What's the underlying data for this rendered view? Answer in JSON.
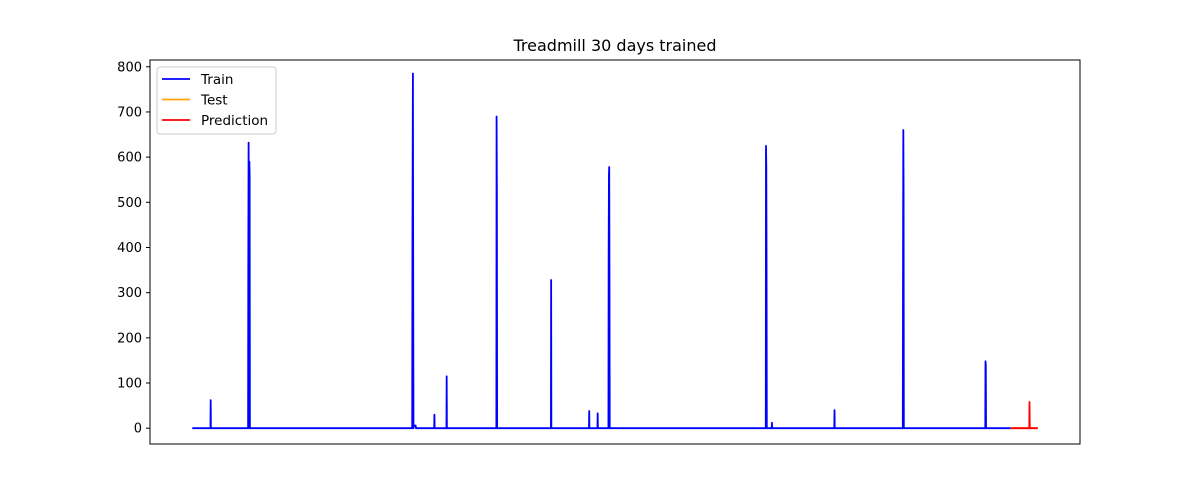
{
  "chart_data": {
    "type": "line",
    "title": "Treadmill 30 days trained",
    "xlabel": "",
    "ylabel": "",
    "ylim": [
      -35,
      815
    ],
    "y_ticks": [
      0,
      100,
      200,
      300,
      400,
      500,
      600,
      700,
      800
    ],
    "x_ticks_shown": false,
    "grid": false,
    "legend_position": "top-left",
    "series": [
      {
        "name": "Train",
        "color": "#0000ff",
        "points": [
          [
            0,
            0
          ],
          [
            43,
            0
          ],
          [
            43.5,
            62
          ],
          [
            44,
            0
          ],
          [
            132,
            0
          ],
          [
            132.5,
            365
          ],
          [
            133.2,
            632
          ],
          [
            133.8,
            310
          ],
          [
            134.2,
            0
          ],
          [
            135,
            590
          ],
          [
            135.6,
            560
          ],
          [
            136.2,
            0
          ],
          [
            520,
            0
          ],
          [
            520.5,
            375
          ],
          [
            521,
            545
          ],
          [
            521.7,
            785
          ],
          [
            522.4,
            300
          ],
          [
            523,
            0
          ],
          [
            524,
            6
          ],
          [
            528,
            6
          ],
          [
            529,
            0
          ],
          [
            572,
            0
          ],
          [
            572.5,
            30
          ],
          [
            573,
            0
          ],
          [
            601,
            0
          ],
          [
            601.5,
            115
          ],
          [
            602,
            0
          ],
          [
            719,
            0
          ],
          [
            719.5,
            690
          ],
          [
            720.2,
            520
          ],
          [
            720.8,
            0
          ],
          [
            848,
            0
          ],
          [
            848.5,
            328
          ],
          [
            849,
            0
          ],
          [
            938,
            0
          ],
          [
            938.5,
            38
          ],
          [
            939,
            0
          ],
          [
            958,
            0
          ],
          [
            958.5,
            33
          ],
          [
            959,
            0
          ],
          [
            984,
            0
          ],
          [
            984.5,
            390
          ],
          [
            985.2,
            560
          ],
          [
            985.8,
            578
          ],
          [
            986.4,
            360
          ],
          [
            987,
            0
          ],
          [
            1356,
            0
          ],
          [
            1356.5,
            625
          ],
          [
            1357.2,
            580
          ],
          [
            1357.8,
            380
          ],
          [
            1358.4,
            0
          ],
          [
            1370,
            0
          ],
          [
            1370.5,
            12
          ],
          [
            1371,
            0
          ],
          [
            1518,
            0
          ],
          [
            1518.5,
            40
          ],
          [
            1519,
            0
          ],
          [
            1680,
            0
          ],
          [
            1680.5,
            330
          ],
          [
            1681.2,
            660
          ],
          [
            1681.8,
            530
          ],
          [
            1682.4,
            0
          ],
          [
            1875,
            0
          ],
          [
            1875.5,
            148
          ],
          [
            1876.2,
            140
          ],
          [
            1876.8,
            0
          ],
          [
            1935,
            0
          ]
        ]
      },
      {
        "name": "Test",
        "color": "#ffa500",
        "points": [
          [
            1935,
            0
          ],
          [
            1999,
            0
          ]
        ]
      },
      {
        "name": "Prediction",
        "color": "#ff0000",
        "points": [
          [
            1935,
            0
          ],
          [
            1979,
            0
          ],
          [
            1979.5,
            58
          ],
          [
            1980.2,
            0
          ],
          [
            1999,
            0
          ]
        ]
      }
    ]
  }
}
